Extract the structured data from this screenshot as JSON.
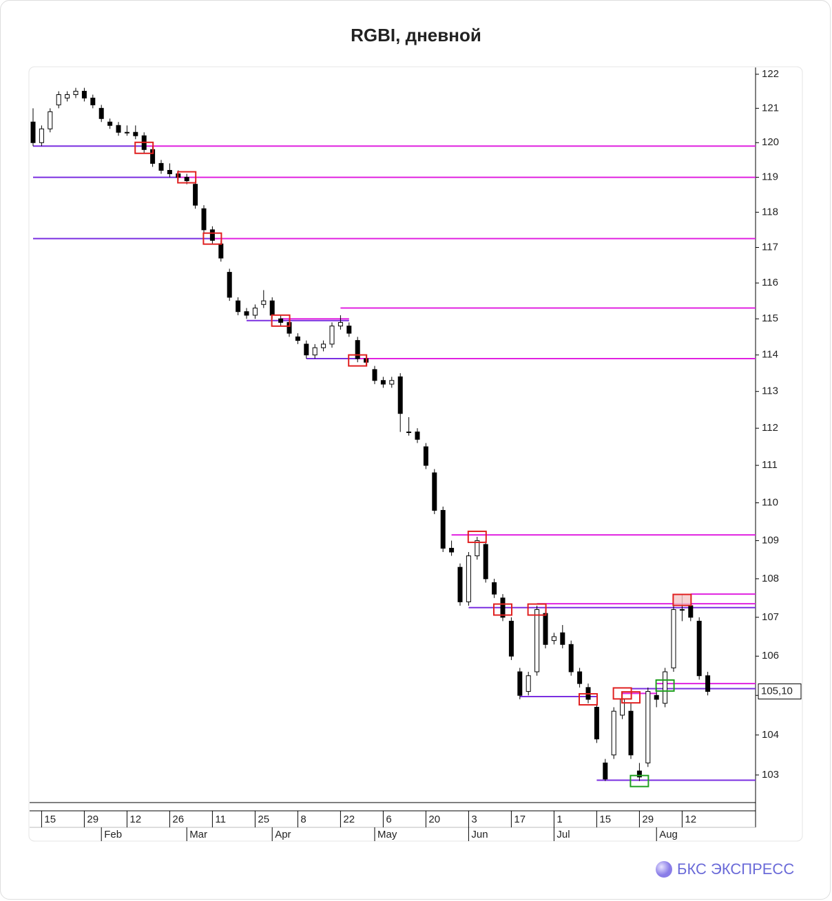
{
  "chart_data": {
    "type": "candlestick",
    "title": "RGBI, дневной",
    "log_scale": true,
    "ylim": [
      102.35,
      122.2
    ],
    "yticks": [
      103,
      104,
      105,
      106,
      107,
      108,
      109,
      110,
      111,
      112,
      113,
      114,
      115,
      116,
      117,
      118,
      119,
      120,
      121,
      122
    ],
    "categories": [
      null,
      "15",
      null,
      null,
      null,
      null,
      "29",
      null,
      null,
      null,
      null,
      "12",
      null,
      null,
      null,
      null,
      "26",
      null,
      null,
      null,
      null,
      "11",
      null,
      null,
      null,
      null,
      "25",
      null,
      null,
      null,
      null,
      "8",
      null,
      null,
      null,
      null,
      "22",
      null,
      null,
      null,
      null,
      "6",
      null,
      null,
      null,
      null,
      "20",
      null,
      null,
      null,
      null,
      "3",
      null,
      null,
      null,
      null,
      "17",
      null,
      null,
      null,
      null,
      "1",
      null,
      null,
      null,
      null,
      "15",
      null,
      null,
      null,
      null,
      "29",
      null,
      null,
      null,
      null,
      "12",
      null,
      null,
      null
    ],
    "months": [
      null,
      null,
      null,
      null,
      null,
      null,
      null,
      null,
      "Feb",
      null,
      null,
      null,
      null,
      null,
      null,
      null,
      null,
      null,
      "Mar",
      null,
      null,
      null,
      null,
      null,
      null,
      null,
      null,
      null,
      "Apr",
      null,
      null,
      null,
      null,
      null,
      null,
      null,
      null,
      null,
      null,
      null,
      "May",
      null,
      null,
      null,
      null,
      null,
      null,
      null,
      null,
      null,
      null,
      "Jun",
      null,
      null,
      null,
      null,
      null,
      null,
      null,
      null,
      null,
      "Jul",
      null,
      null,
      null,
      null,
      null,
      null,
      null,
      null,
      null,
      null,
      null,
      "Aug",
      null,
      null,
      null,
      null,
      null,
      null
    ],
    "up_color": "#ffffff",
    "down_color": "#000000",
    "candles": [
      [
        120.6,
        121.0,
        119.9,
        120.0
      ],
      [
        120.0,
        120.5,
        119.9,
        120.4
      ],
      [
        120.4,
        121.0,
        120.3,
        120.9
      ],
      [
        121.1,
        121.5,
        121.0,
        121.4
      ],
      [
        121.3,
        121.5,
        121.2,
        121.4
      ],
      [
        121.4,
        121.6,
        121.3,
        121.5
      ],
      [
        121.5,
        121.6,
        121.2,
        121.3
      ],
      [
        121.3,
        121.4,
        121.0,
        121.1
      ],
      [
        121.0,
        121.1,
        120.6,
        120.7
      ],
      [
        120.6,
        120.7,
        120.4,
        120.5
      ],
      [
        120.5,
        120.6,
        120.2,
        120.3
      ],
      [
        120.3,
        120.5,
        120.2,
        120.3
      ],
      [
        120.3,
        120.5,
        120.1,
        120.2
      ],
      [
        120.2,
        120.3,
        119.7,
        119.8
      ],
      [
        119.8,
        119.9,
        119.3,
        119.4
      ],
      [
        119.4,
        119.5,
        119.1,
        119.2
      ],
      [
        119.2,
        119.4,
        119.0,
        119.1
      ],
      [
        119.1,
        119.2,
        118.9,
        119.0
      ],
      [
        119.0,
        119.1,
        118.8,
        118.9
      ],
      [
        118.8,
        118.9,
        118.1,
        118.2
      ],
      [
        118.1,
        118.2,
        117.4,
        117.5
      ],
      [
        117.5,
        117.6,
        117.1,
        117.2
      ],
      [
        117.1,
        117.2,
        116.6,
        116.7
      ],
      [
        116.3,
        116.4,
        115.5,
        115.6
      ],
      [
        115.5,
        115.6,
        115.1,
        115.2
      ],
      [
        115.2,
        115.3,
        115.0,
        115.1
      ],
      [
        115.1,
        115.4,
        115.0,
        115.3
      ],
      [
        115.4,
        115.8,
        115.3,
        115.5
      ],
      [
        115.5,
        115.6,
        115.0,
        115.1
      ],
      [
        115.0,
        115.1,
        114.8,
        114.9
      ],
      [
        114.9,
        115.0,
        114.5,
        114.6
      ],
      [
        114.5,
        114.6,
        114.3,
        114.4
      ],
      [
        114.3,
        114.4,
        113.9,
        114.0
      ],
      [
        114.0,
        114.3,
        113.9,
        114.2
      ],
      [
        114.2,
        114.4,
        114.1,
        114.3
      ],
      [
        114.3,
        114.9,
        114.2,
        114.8
      ],
      [
        114.8,
        115.1,
        114.7,
        114.9
      ],
      [
        114.8,
        114.9,
        114.5,
        114.6
      ],
      [
        114.4,
        114.5,
        113.8,
        113.9
      ],
      [
        113.9,
        114.0,
        113.7,
        113.8
      ],
      [
        113.6,
        113.7,
        113.2,
        113.3
      ],
      [
        113.3,
        113.4,
        113.1,
        113.2
      ],
      [
        113.2,
        113.4,
        113.1,
        113.3
      ],
      [
        113.4,
        113.5,
        111.9,
        112.4
      ],
      [
        111.9,
        112.3,
        111.8,
        111.9
      ],
      [
        111.9,
        112.0,
        111.6,
        111.7
      ],
      [
        111.5,
        111.6,
        110.9,
        111.0
      ],
      [
        110.8,
        110.9,
        109.7,
        109.8
      ],
      [
        109.8,
        109.9,
        108.7,
        108.8
      ],
      [
        108.8,
        109.0,
        108.6,
        108.7
      ],
      [
        108.3,
        108.4,
        107.3,
        107.4
      ],
      [
        107.4,
        108.7,
        107.3,
        108.6
      ],
      [
        108.6,
        109.1,
        108.5,
        109.0
      ],
      [
        108.9,
        109.0,
        107.9,
        108.0
      ],
      [
        107.9,
        108.0,
        107.5,
        107.6
      ],
      [
        107.5,
        107.6,
        106.9,
        107.0
      ],
      [
        106.9,
        107.0,
        105.9,
        106.0
      ],
      [
        105.6,
        105.7,
        104.9,
        105.0
      ],
      [
        105.1,
        105.6,
        105.0,
        105.5
      ],
      [
        105.6,
        107.3,
        105.5,
        107.2
      ],
      [
        107.1,
        107.2,
        106.2,
        106.3
      ],
      [
        106.4,
        106.6,
        106.3,
        106.5
      ],
      [
        106.6,
        106.8,
        106.2,
        106.3
      ],
      [
        106.3,
        106.4,
        105.5,
        105.6
      ],
      [
        105.6,
        105.7,
        105.2,
        105.3
      ],
      [
        105.2,
        105.3,
        104.8,
        104.9
      ],
      [
        104.7,
        104.8,
        103.8,
        103.9
      ],
      [
        103.3,
        103.4,
        102.85,
        102.9
      ],
      [
        103.5,
        104.7,
        103.4,
        104.6
      ],
      [
        104.5,
        105.1,
        104.4,
        104.9
      ],
      [
        104.6,
        104.8,
        103.4,
        103.5
      ],
      [
        103.1,
        103.3,
        102.85,
        102.95
      ],
      [
        103.3,
        105.2,
        103.2,
        105.1
      ],
      [
        105.0,
        105.2,
        104.7,
        104.9
      ],
      [
        104.8,
        105.7,
        104.7,
        105.6
      ],
      [
        105.7,
        107.3,
        105.6,
        107.2
      ],
      [
        107.2,
        107.6,
        106.9,
        107.2
      ],
      [
        107.3,
        107.5,
        106.9,
        107.0
      ],
      [
        106.9,
        107.0,
        105.4,
        105.5
      ],
      [
        105.5,
        105.6,
        105.0,
        105.1
      ]
    ],
    "last_value_label": "105,10",
    "levels": [
      {
        "value": 119.9,
        "from": 0,
        "to": 13,
        "color": "#7a2ee0"
      },
      {
        "value": 119.9,
        "from": 13,
        "color": "#e020e0"
      },
      {
        "value": 119.0,
        "from": 0,
        "to": 17,
        "color": "#7a2ee0"
      },
      {
        "value": 119.0,
        "from": 17,
        "color": "#e020e0"
      },
      {
        "value": 117.25,
        "from": 0,
        "to": 21,
        "color": "#7a2ee0"
      },
      {
        "value": 117.25,
        "from": 21,
        "color": "#e020e0"
      },
      {
        "value": 115.3,
        "from": 36,
        "color": "#e020e0"
      },
      {
        "value": 115.0,
        "from": 29,
        "to": 37,
        "color": "#e020e0"
      },
      {
        "value": 114.95,
        "from": 25,
        "to": 37,
        "color": "#7a2ee0"
      },
      {
        "value": 113.9,
        "from": 32,
        "to": 38,
        "color": "#7a2ee0"
      },
      {
        "value": 113.9,
        "from": 38,
        "color": "#e020e0"
      },
      {
        "value": 109.15,
        "from": 49,
        "color": "#e020e0"
      },
      {
        "value": 107.35,
        "from": 59,
        "color": "#e020e0"
      },
      {
        "value": 107.25,
        "from": 51,
        "color": "#7a2ee0"
      },
      {
        "value": 107.6,
        "from": 77,
        "color": "#e020e0"
      },
      {
        "value": 105.3,
        "from": 73,
        "color": "#e020e0"
      },
      {
        "value": 105.17,
        "from": 70,
        "color": "#7a2ee0"
      },
      {
        "value": 105.05,
        "from": 69,
        "to": 73,
        "color": "#e020e0"
      },
      {
        "value": 104.97,
        "from": 57,
        "to": 66,
        "color": "#7a2ee0"
      },
      {
        "value": 102.87,
        "from": 66,
        "color": "#7a2ee0"
      }
    ],
    "markers": [
      {
        "x": 13,
        "value": 119.85,
        "color": "#e02020"
      },
      {
        "x": 18,
        "value": 119.0,
        "color": "#e02020"
      },
      {
        "x": 21,
        "value": 117.25,
        "color": "#e02020"
      },
      {
        "x": 29,
        "value": 114.95,
        "color": "#e02020"
      },
      {
        "x": 38,
        "value": 113.85,
        "color": "#e02020"
      },
      {
        "x": 52,
        "value": 109.1,
        "color": "#e02020"
      },
      {
        "x": 55,
        "value": 107.2,
        "color": "#e02020"
      },
      {
        "x": 59,
        "value": 107.2,
        "color": "#e02020"
      },
      {
        "x": 65,
        "value": 104.9,
        "color": "#e02020"
      },
      {
        "x": 69,
        "value": 105.05,
        "color": "#e02020"
      },
      {
        "x": 70,
        "value": 104.95,
        "color": "#e02020"
      },
      {
        "x": 76,
        "value": 107.45,
        "color": "#e02020",
        "fill": "#f4c8c8"
      },
      {
        "x": 74,
        "value": 105.25,
        "color": "#20a020"
      },
      {
        "x": 71,
        "value": 102.85,
        "color": "#20a020"
      }
    ]
  },
  "footer": {
    "logo_text": "БКС ЭКСПРЕСС"
  }
}
